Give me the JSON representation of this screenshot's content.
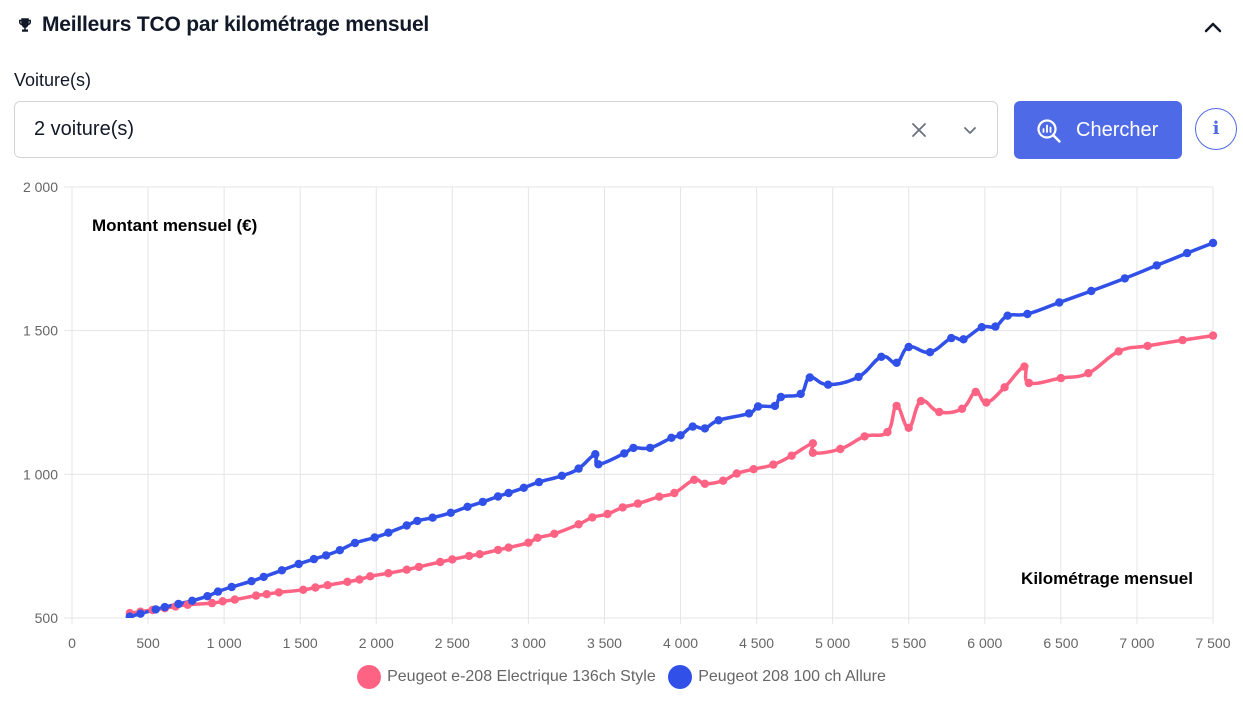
{
  "header": {
    "title": "Meilleurs TCO par kilométrage mensuel",
    "icon": "trophy-icon",
    "collapse_icon": "chevron-up-icon"
  },
  "filter": {
    "label": "Voiture(s)",
    "value": "2 voiture(s)"
  },
  "search_button": {
    "label": "Chercher",
    "icon": "search-analytics-icon"
  },
  "info_button": {
    "label": "i"
  },
  "colors": {
    "accent": "#4f6ae6",
    "pink": "#ff6384",
    "blue": "#3050e8",
    "grid": "#e5e5e5"
  },
  "chart_data": {
    "type": "line",
    "ylabel": "Montant mensuel (€)",
    "xlabel": "Kilométrage mensuel",
    "xlim": [
      0,
      7500
    ],
    "ylim": [
      500,
      2000
    ],
    "x_ticks": [
      0,
      500,
      1000,
      1500,
      2000,
      2500,
      3000,
      3500,
      4000,
      4500,
      5000,
      5500,
      6000,
      6500,
      7000,
      7500
    ],
    "x_tick_labels": [
      "0",
      "500",
      "1 000",
      "1 500",
      "2 000",
      "2 500",
      "3 000",
      "3 500",
      "4 000",
      "4 500",
      "5 000",
      "5 500",
      "6 000",
      "6 500",
      "7 000",
      "7 500"
    ],
    "y_ticks": [
      500,
      1000,
      1500,
      2000
    ],
    "y_tick_labels": [
      "500",
      "1 000",
      "1 500",
      "2 000"
    ],
    "series": [
      {
        "name": "Peugeot e-208 Electrique 136ch Style",
        "color": "#ff6384",
        "points": [
          [
            380,
            517
          ],
          [
            450,
            522
          ],
          [
            530,
            528
          ],
          [
            610,
            534
          ],
          [
            680,
            540
          ],
          [
            760,
            546
          ],
          [
            920,
            552
          ],
          [
            990,
            558
          ],
          [
            1070,
            564
          ],
          [
            1210,
            578
          ],
          [
            1280,
            583
          ],
          [
            1360,
            589
          ],
          [
            1520,
            598
          ],
          [
            1600,
            606
          ],
          [
            1680,
            614
          ],
          [
            1810,
            626
          ],
          [
            1890,
            634
          ],
          [
            1960,
            645
          ],
          [
            2080,
            656
          ],
          [
            2200,
            668
          ],
          [
            2280,
            678
          ],
          [
            2420,
            695
          ],
          [
            2500,
            704
          ],
          [
            2610,
            716
          ],
          [
            2680,
            722
          ],
          [
            2800,
            737
          ],
          [
            2870,
            745
          ],
          [
            3000,
            762
          ],
          [
            3060,
            779
          ],
          [
            3170,
            793
          ],
          [
            3330,
            826
          ],
          [
            3420,
            850
          ],
          [
            3520,
            862
          ],
          [
            3620,
            885
          ],
          [
            3720,
            898
          ],
          [
            3860,
            922
          ],
          [
            3960,
            935
          ],
          [
            4090,
            981
          ],
          [
            4160,
            967
          ],
          [
            4280,
            978
          ],
          [
            4370,
            1003
          ],
          [
            4480,
            1018
          ],
          [
            4610,
            1034
          ],
          [
            4730,
            1065
          ],
          [
            4870,
            1108
          ],
          [
            4870,
            1075
          ],
          [
            5050,
            1088
          ],
          [
            5210,
            1132
          ],
          [
            5360,
            1147
          ],
          [
            5420,
            1238
          ],
          [
            5500,
            1162
          ],
          [
            5580,
            1255
          ],
          [
            5700,
            1217
          ],
          [
            5850,
            1228
          ],
          [
            5940,
            1287
          ],
          [
            6010,
            1250
          ],
          [
            6130,
            1303
          ],
          [
            6260,
            1375
          ],
          [
            6290,
            1318
          ],
          [
            6500,
            1335
          ],
          [
            6680,
            1352
          ],
          [
            6880,
            1428
          ],
          [
            7070,
            1447
          ],
          [
            7300,
            1467
          ],
          [
            7500,
            1483
          ]
        ]
      },
      {
        "name": "Peugeot 208 100 ch Allure",
        "color": "#3050e8",
        "points": [
          [
            380,
            505
          ],
          [
            450,
            515
          ],
          [
            550,
            530
          ],
          [
            610,
            538
          ],
          [
            700,
            549
          ],
          [
            790,
            560
          ],
          [
            890,
            576
          ],
          [
            960,
            592
          ],
          [
            1050,
            608
          ],
          [
            1180,
            628
          ],
          [
            1260,
            643
          ],
          [
            1380,
            666
          ],
          [
            1490,
            688
          ],
          [
            1590,
            705
          ],
          [
            1670,
            718
          ],
          [
            1760,
            736
          ],
          [
            1860,
            761
          ],
          [
            1990,
            780
          ],
          [
            2080,
            797
          ],
          [
            2200,
            822
          ],
          [
            2270,
            838
          ],
          [
            2370,
            849
          ],
          [
            2490,
            866
          ],
          [
            2600,
            887
          ],
          [
            2700,
            904
          ],
          [
            2800,
            923
          ],
          [
            2870,
            935
          ],
          [
            2970,
            953
          ],
          [
            3070,
            973
          ],
          [
            3220,
            995
          ],
          [
            3330,
            1020
          ],
          [
            3440,
            1070
          ],
          [
            3460,
            1035
          ],
          [
            3630,
            1073
          ],
          [
            3690,
            1092
          ],
          [
            3800,
            1092
          ],
          [
            3940,
            1127
          ],
          [
            4000,
            1136
          ],
          [
            4080,
            1166
          ],
          [
            4160,
            1160
          ],
          [
            4250,
            1188
          ],
          [
            4450,
            1212
          ],
          [
            4510,
            1236
          ],
          [
            4620,
            1238
          ],
          [
            4660,
            1269
          ],
          [
            4790,
            1280
          ],
          [
            4850,
            1337
          ],
          [
            4970,
            1312
          ],
          [
            5170,
            1339
          ],
          [
            5320,
            1409
          ],
          [
            5420,
            1388
          ],
          [
            5500,
            1443
          ],
          [
            5640,
            1425
          ],
          [
            5780,
            1474
          ],
          [
            5860,
            1470
          ],
          [
            5980,
            1512
          ],
          [
            6070,
            1514
          ],
          [
            6150,
            1552
          ],
          [
            6280,
            1558
          ],
          [
            6490,
            1598
          ],
          [
            6700,
            1638
          ],
          [
            6920,
            1682
          ],
          [
            7130,
            1727
          ],
          [
            7330,
            1770
          ],
          [
            7500,
            1805
          ]
        ]
      }
    ]
  }
}
